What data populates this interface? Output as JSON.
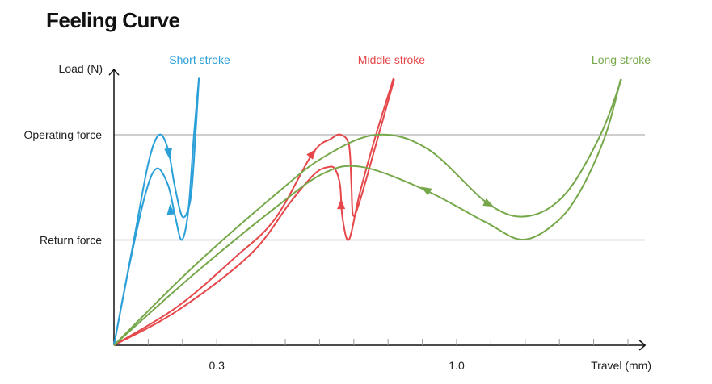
{
  "title": "Feeling Curve",
  "chart_data": {
    "type": "line",
    "title": "Feeling Curve",
    "xlabel": "Travel (mm)",
    "ylabel": "Load (N)",
    "xlim": [
      0,
      1.55
    ],
    "ylim": [
      0,
      1.31
    ],
    "x_ticks": [
      0.1,
      0.2,
      0.3,
      0.4,
      0.5,
      0.6,
      0.7,
      0.8,
      0.9,
      1.0,
      1.1,
      1.2,
      1.3,
      1.4,
      1.5
    ],
    "x_tick_labels": [
      {
        "value": 0.3,
        "label": "0.3"
      },
      {
        "value": 1.0,
        "label": "1.0"
      }
    ],
    "reference_lines": [
      {
        "label": "Operating force",
        "y": 1.0
      },
      {
        "label": "Return force",
        "y": 0.5
      }
    ],
    "grid": false,
    "series": [
      {
        "name": "Short stroke",
        "color": "#2a9fd8",
        "label_x": 0.25,
        "press": {
          "x": [
            0,
            0.057,
            0.101,
            0.132,
            0.158,
            0.177,
            0.2,
            0.222,
            0.233,
            0.248
          ],
          "y": [
            0,
            0.49,
            0.87,
            1.0,
            0.93,
            0.76,
            0.61,
            0.68,
            0.87,
            1.27
          ]
        },
        "return": {
          "x": [
            0.248,
            0.233,
            0.217,
            0.198,
            0.179,
            0.158,
            0.125,
            0.092,
            0.045,
            0
          ],
          "y": [
            1.27,
            0.99,
            0.64,
            0.5,
            0.61,
            0.76,
            0.84,
            0.72,
            0.38,
            0
          ]
        },
        "arrows": [
          {
            "x": 0.16,
            "y": 0.912,
            "toward": [
              0.167,
              0.816
            ]
          },
          {
            "x": 0.165,
            "y": 0.644,
            "toward": [
              0.16,
              0.739
            ]
          }
        ]
      },
      {
        "name": "Middle stroke",
        "color": "#e5474a",
        "label_x": 0.81,
        "press": {
          "x": [
            0,
            0.186,
            0.351,
            0.469,
            0.58,
            0.634,
            0.662,
            0.686,
            0.693,
            0.698,
            0.717,
            0.764,
            0.818
          ],
          "y": [
            0,
            0.184,
            0.414,
            0.598,
            0.912,
            0.981,
            1.0,
            0.95,
            0.759,
            0.617,
            0.682,
            0.95,
            1.264
          ]
        },
        "return": {
          "x": [
            0.816,
            0.764,
            0.717,
            0.686,
            0.667,
            0.66,
            0.646,
            0.627,
            0.587,
            0.516,
            0.399,
            0.186,
            0
          ],
          "y": [
            1.268,
            0.996,
            0.72,
            0.502,
            0.605,
            0.759,
            0.835,
            0.847,
            0.816,
            0.682,
            0.433,
            0.165,
            0
          ]
        },
        "arrows": [
          {
            "x": 0.58,
            "y": 0.912,
            "toward": [
              0.599,
              0.95
            ]
          },
          {
            "x": 0.663,
            "y": 0.67,
            "toward": [
              0.663,
              0.739
            ]
          }
        ]
      },
      {
        "name": "Long stroke",
        "color": "#76a84a",
        "label_x": 1.48,
        "press": {
          "x": [
            0,
            0.233,
            0.469,
            0.611,
            0.767,
            0.917,
            1.094,
            1.208,
            1.318,
            1.42,
            1.481
          ],
          "y": [
            0,
            0.375,
            0.713,
            0.893,
            1.0,
            0.931,
            0.67,
            0.613,
            0.72,
            1.0,
            1.264
          ]
        },
        "return": {
          "x": [
            1.479,
            1.434,
            1.363,
            1.292,
            1.193,
            1.083,
            0.906,
            0.724,
            0.611,
            0.469,
            0.233,
            0
          ],
          "y": [
            1.264,
            0.996,
            0.739,
            0.586,
            0.502,
            0.586,
            0.739,
            0.847,
            0.816,
            0.651,
            0.337,
            0
          ]
        },
        "arrows": [
          {
            "x": 1.094,
            "y": 0.67,
            "toward": [
              1.118,
              0.651
            ]
          },
          {
            "x": 0.91,
            "y": 0.739,
            "toward": [
              0.882,
              0.766
            ]
          }
        ]
      }
    ]
  }
}
